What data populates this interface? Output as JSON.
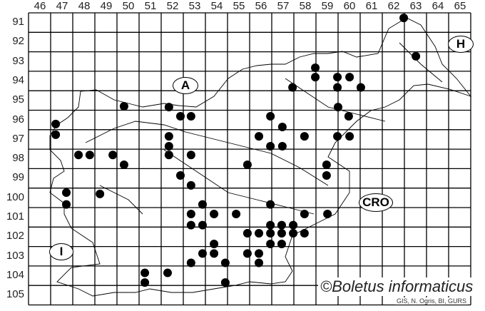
{
  "columns": [
    "46",
    "47",
    "48",
    "49",
    "50",
    "51",
    "52",
    "53",
    "54",
    "55",
    "56",
    "57",
    "58",
    "59",
    "60",
    "61",
    "62",
    "63",
    "64",
    "65"
  ],
  "rows": [
    "91",
    "92",
    "93",
    "94",
    "95",
    "96",
    "97",
    "98",
    "99",
    "100",
    "101",
    "102",
    "103",
    "104",
    "105"
  ],
  "region_labels": {
    "austria": "A",
    "hungary": "H",
    "croatia": "CRO",
    "italy": "I"
  },
  "copyright": "©Boletus informaticus",
  "credit": "GIS, N. Ogris, BI, GURS",
  "dot_color": "#000000",
  "records": [
    [
      62.97,
      91.26
    ],
    [
      63.52,
      93.23
    ],
    [
      58.97,
      93.82
    ],
    [
      58.97,
      94.3
    ],
    [
      57.94,
      94.83
    ],
    [
      59.97,
      94.3
    ],
    [
      60.52,
      94.3
    ],
    [
      59.97,
      94.83
    ],
    [
      61.03,
      94.83
    ],
    [
      60.0,
      95.84
    ],
    [
      60.48,
      96.31
    ],
    [
      50.32,
      95.8
    ],
    [
      52.35,
      95.84
    ],
    [
      52.87,
      96.31
    ],
    [
      53.35,
      96.31
    ],
    [
      56.94,
      96.31
    ],
    [
      57.48,
      96.86
    ],
    [
      47.23,
      96.71
    ],
    [
      47.23,
      97.26
    ],
    [
      52.35,
      97.34
    ],
    [
      52.35,
      97.85
    ],
    [
      53.35,
      98.3
    ],
    [
      52.35,
      98.3
    ],
    [
      56.42,
      97.34
    ],
    [
      56.94,
      97.85
    ],
    [
      57.48,
      97.85
    ],
    [
      58.48,
      97.34
    ],
    [
      59.97,
      97.34
    ],
    [
      60.52,
      97.34
    ],
    [
      48.26,
      98.3
    ],
    [
      48.77,
      98.3
    ],
    [
      49.81,
      98.3
    ],
    [
      50.32,
      98.8
    ],
    [
      59.48,
      98.8
    ],
    [
      59.48,
      99.35
    ],
    [
      52.87,
      99.35
    ],
    [
      55.9,
      98.8
    ],
    [
      53.35,
      99.86
    ],
    [
      47.71,
      100.23
    ],
    [
      47.71,
      100.84
    ],
    [
      49.23,
      100.3
    ],
    [
      53.87,
      100.84
    ],
    [
      53.35,
      101.33
    ],
    [
      54.39,
      101.33
    ],
    [
      53.35,
      101.9
    ],
    [
      53.87,
      101.9
    ],
    [
      55.39,
      101.33
    ],
    [
      56.94,
      100.84
    ],
    [
      58.48,
      101.33
    ],
    [
      59.52,
      101.33
    ],
    [
      56.94,
      101.9
    ],
    [
      57.45,
      101.9
    ],
    [
      57.97,
      101.9
    ],
    [
      55.9,
      102.32
    ],
    [
      56.42,
      102.32
    ],
    [
      56.94,
      102.32
    ],
    [
      57.45,
      102.32
    ],
    [
      57.97,
      102.32
    ],
    [
      58.48,
      102.32
    ],
    [
      56.94,
      102.87
    ],
    [
      57.45,
      102.87
    ],
    [
      54.39,
      102.87
    ],
    [
      53.35,
      103.84
    ],
    [
      53.87,
      103.36
    ],
    [
      54.39,
      103.36
    ],
    [
      54.9,
      103.84
    ],
    [
      55.9,
      103.36
    ],
    [
      56.42,
      103.36
    ],
    [
      56.42,
      103.84
    ],
    [
      51.26,
      104.35
    ],
    [
      51.26,
      104.85
    ],
    [
      52.29,
      104.35
    ],
    [
      54.9,
      104.85
    ]
  ]
}
